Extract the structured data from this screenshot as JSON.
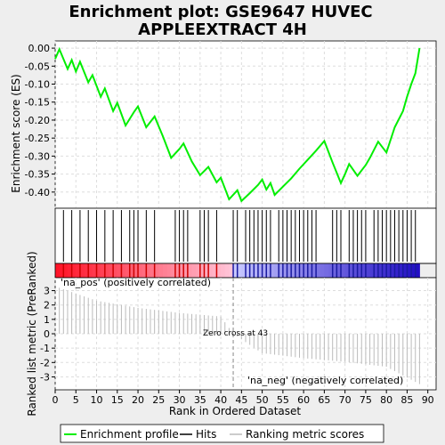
{
  "title_lines": [
    "Enrichment plot: GSE9647 HUVEC",
    "APPLEEXTRACT 4H"
  ],
  "colors": {
    "enrichment_line": "#00ee00",
    "hits": "#000000",
    "ranking": "#bbbbbb",
    "grid": "#dddddd",
    "pos_label": "#cc0000",
    "neg_label": "#0000cc",
    "zero_line": "#888888"
  },
  "chart_data": [
    {
      "type": "line",
      "panel": "enrichment",
      "ylabel": "Enrichment score (ES)",
      "ylim": [
        -0.445,
        0.02
      ],
      "xlim": [
        0,
        92
      ],
      "yticks": [
        0.0,
        -0.05,
        -0.1,
        -0.15,
        -0.2,
        -0.25,
        -0.3,
        -0.35,
        -0.4
      ],
      "ytick_labels": [
        "0.00",
        "-0.05",
        "-0.10",
        "-0.15",
        "-0.20",
        "-0.25",
        "-0.30",
        "-0.35",
        "-0.40"
      ],
      "grid": true,
      "series": [
        {
          "name": "Enrichment profile",
          "x": [
            0,
            1,
            3,
            4,
            5,
            6,
            8,
            9,
            11,
            12,
            14,
            15,
            17,
            19,
            20,
            22,
            24,
            26,
            28,
            30,
            31,
            33,
            35,
            37,
            39,
            40,
            42,
            44,
            45,
            47,
            49,
            50,
            51,
            52,
            53,
            55,
            57,
            59,
            61,
            63,
            65,
            67,
            69,
            70,
            71,
            73,
            75,
            76,
            78,
            80,
            82,
            84,
            85,
            86,
            87,
            88
          ],
          "y": [
            -0.03,
            -0.003,
            -0.058,
            -0.033,
            -0.065,
            -0.038,
            -0.095,
            -0.075,
            -0.135,
            -0.112,
            -0.175,
            -0.152,
            -0.215,
            -0.178,
            -0.162,
            -0.22,
            -0.19,
            -0.245,
            -0.305,
            -0.28,
            -0.265,
            -0.315,
            -0.353,
            -0.33,
            -0.373,
            -0.36,
            -0.42,
            -0.395,
            -0.425,
            -0.403,
            -0.38,
            -0.365,
            -0.393,
            -0.375,
            -0.408,
            -0.385,
            -0.362,
            -0.335,
            -0.31,
            -0.285,
            -0.258,
            -0.318,
            -0.375,
            -0.35,
            -0.322,
            -0.355,
            -0.325,
            -0.305,
            -0.26,
            -0.29,
            -0.22,
            -0.175,
            -0.135,
            -0.1,
            -0.07,
            0.0
          ]
        }
      ]
    },
    {
      "type": "scatter",
      "panel": "hits",
      "legend_name": "Hits",
      "x": [
        2,
        4,
        6,
        8,
        10,
        12,
        14,
        16,
        18,
        19,
        20,
        22,
        24,
        29,
        30,
        31,
        32,
        35,
        36,
        37,
        39,
        43,
        44,
        46,
        47,
        48,
        49,
        50,
        51,
        52,
        54,
        55,
        56,
        57,
        58,
        59,
        60,
        61,
        62,
        63,
        67,
        68,
        69,
        71,
        72,
        73,
        74,
        75,
        77,
        78,
        79,
        80,
        81,
        82,
        83,
        84,
        85,
        86,
        87
      ]
    },
    {
      "type": "area",
      "panel": "ranking",
      "ylabel": "Ranked list metric (PreRanked)",
      "xlabel": "Rank in Ordered Dataset",
      "legend_name": "Ranking metric scores",
      "ylim": [
        -3.9,
        3.9
      ],
      "yticks": [
        3,
        2,
        1,
        0,
        -1,
        -2,
        -3
      ],
      "xticks": [
        0,
        5,
        10,
        15,
        20,
        25,
        30,
        35,
        40,
        45,
        50,
        55,
        60,
        65,
        70,
        75,
        80,
        85,
        90
      ],
      "x": [
        0,
        10,
        20,
        30,
        40,
        43,
        50,
        60,
        70,
        80,
        84,
        88
      ],
      "y": [
        3.3,
        2.3,
        1.8,
        1.45,
        1.2,
        0.0,
        -1.35,
        -1.7,
        -1.95,
        -2.3,
        -2.9,
        -3.5
      ],
      "pos_label": "'na_pos' (positively correlated)",
      "neg_label": "'na_neg' (negatively correlated)",
      "zero_cross_label": "Zero cross at 43",
      "zero_cross_x": 43
    }
  ],
  "legend": {
    "enrichment": "Enrichment profile",
    "hits": "Hits",
    "ranking": "Ranking metric scores"
  }
}
